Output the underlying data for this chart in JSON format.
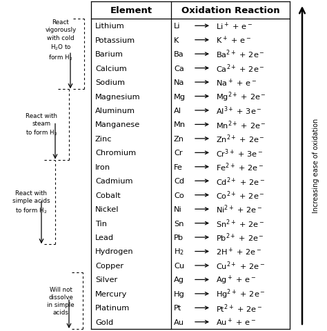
{
  "title_element": "Element",
  "title_reaction": "Oxidation Reaction",
  "elements": [
    "Lithium",
    "Potassium",
    "Barium",
    "Calcium",
    "Sodium",
    "Magnesium",
    "Aluminum",
    "Manganese",
    "Zinc",
    "Chromium",
    "Iron",
    "Cadmium",
    "Cobalt",
    "Nickel",
    "Tin",
    "Lead",
    "Hydrogen",
    "Copper",
    "Silver",
    "Mercury",
    "Platinum",
    "Gold"
  ],
  "symbols": [
    "Li",
    "K",
    "Ba",
    "Ca",
    "Na",
    "Mg",
    "Al",
    "Mn",
    "Zn",
    "Cr",
    "Fe",
    "Cd",
    "Co",
    "Ni",
    "Sn",
    "Pb",
    "H$_2$",
    "Cu",
    "Ag",
    "Hg",
    "Pt",
    "Au"
  ],
  "reactions": [
    "Li$^+$ + e$^-$",
    "K$^+$ + e$^-$",
    "Ba$^{2+}$ + 2e$^-$",
    "Ca$^{2+}$ + 2e$^-$",
    "Na$^+$ + e$^-$",
    "Mg$^{2+}$ + 2e$^-$",
    "Al$^{3+}$ + 3e$^-$",
    "Mn$^{2+}$ + 2e$^-$",
    "Zn$^{2+}$ + 2e$^-$",
    "Cr$^{3+}$ + 3e$^-$",
    "Fe$^{2+}$ + 2e$^-$",
    "Cd$^{2+}$ + 2e$^-$",
    "Co$^{2+}$ + 2e$^-$",
    "Ni$^{2+}$ + 2e$^-$",
    "Sn$^{2+}$ + 2e$^-$",
    "Pb$^{2+}$ + 2e$^-$",
    "2H$^+$ + 2e$^-$",
    "Cu$^{2+}$ + 2e$^-$",
    "Ag$^+$ + e$^-$",
    "Hg$^{2+}$ + 2e$^-$",
    "Pt$^{2+}$ + 2e$^-$",
    "Au$^+$ + e$^-$"
  ],
  "side_label": "Increasing ease of oxidation",
  "bg_color": "#ffffff",
  "text_color": "#000000"
}
